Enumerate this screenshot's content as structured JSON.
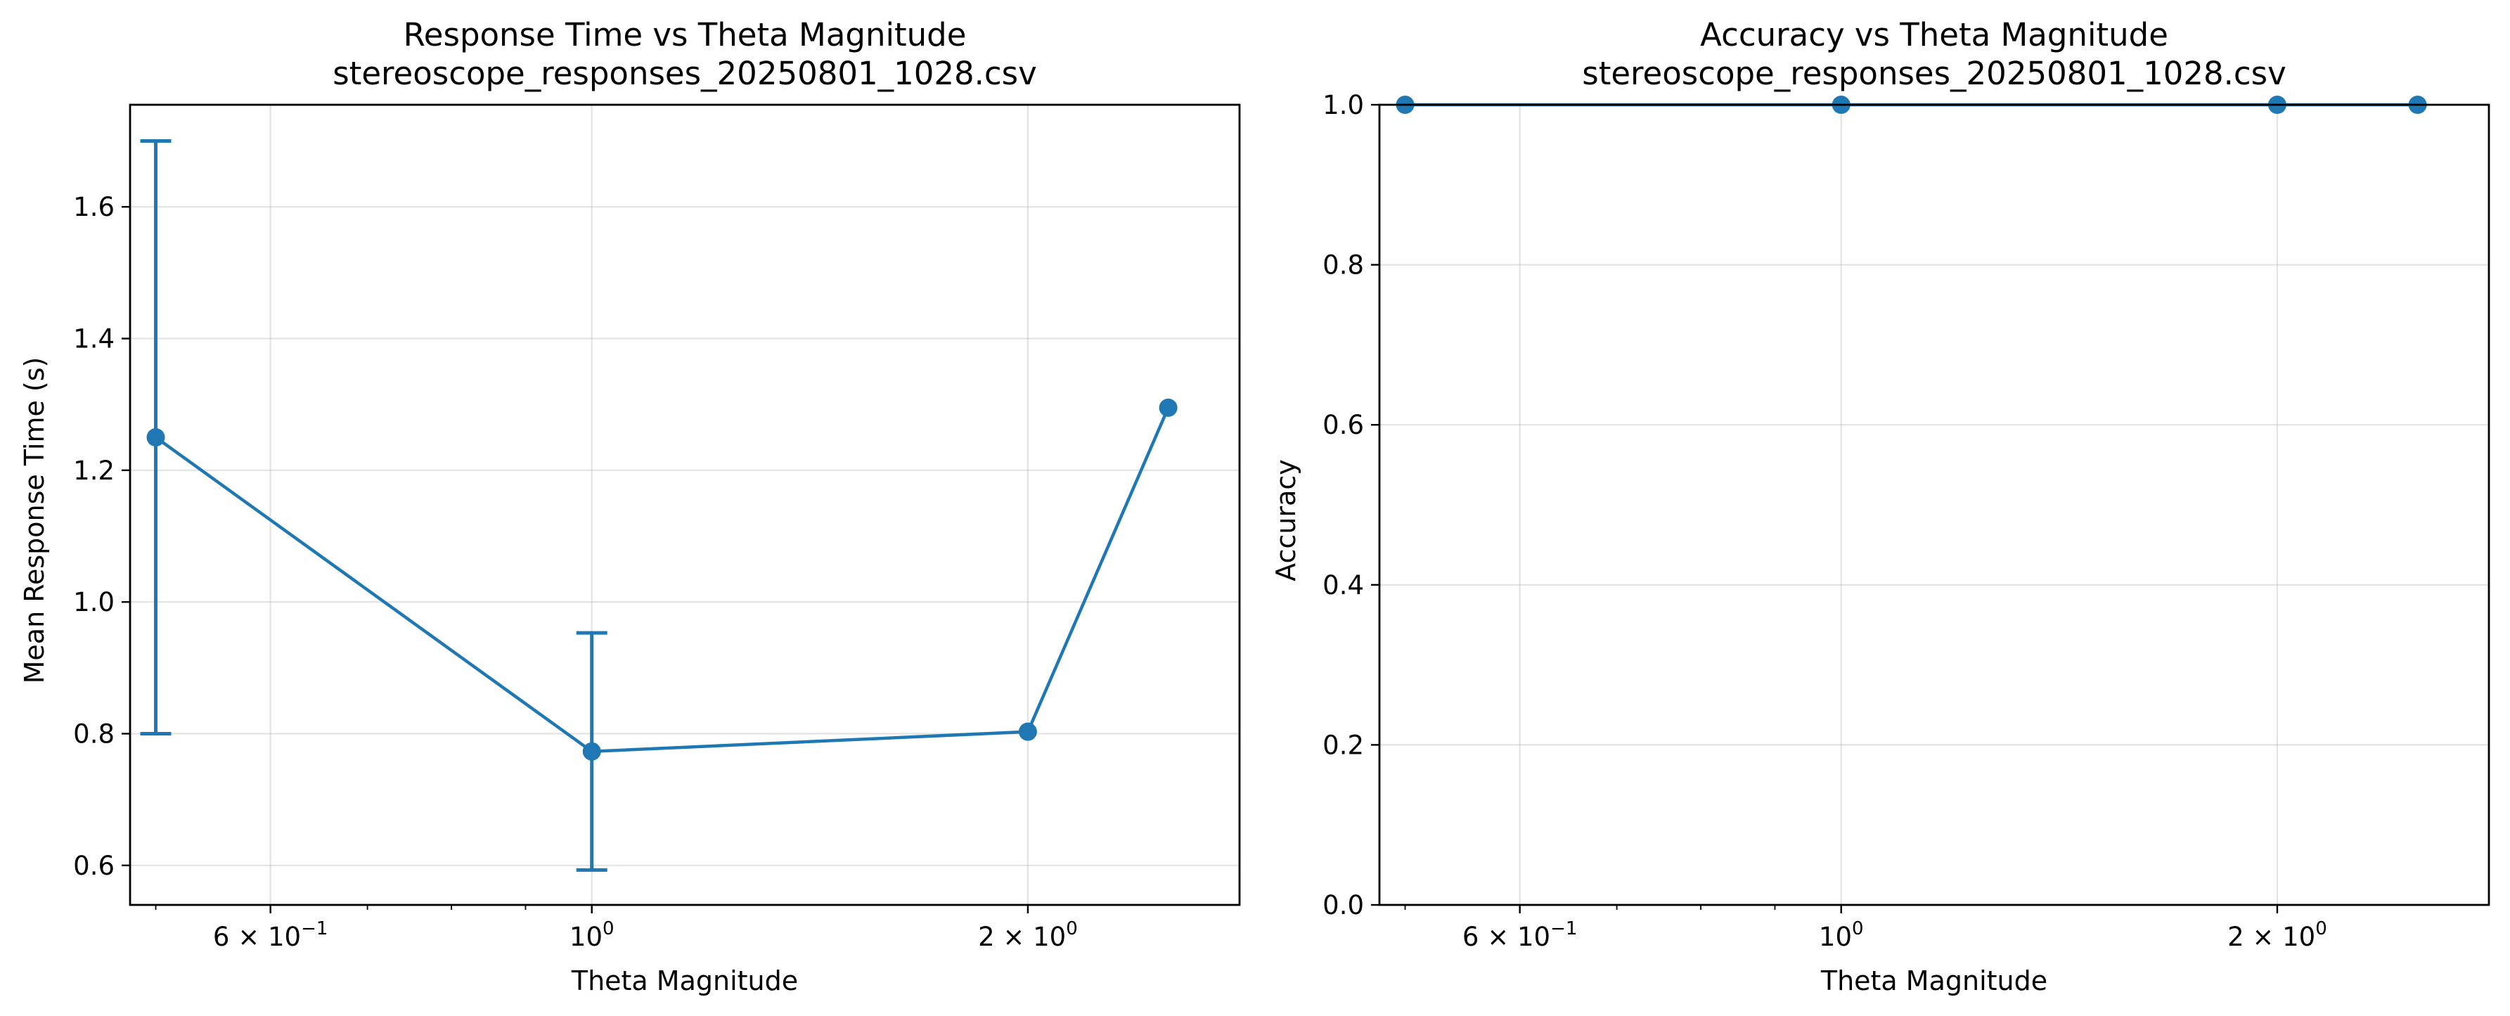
{
  "chart_data": [
    {
      "type": "line",
      "title": "Response Time vs Theta Magnitude",
      "subtitle": "stereoscope_responses_20250801_1028.csv",
      "xlabel": "Theta Magnitude",
      "ylabel": "Mean Response Time (s)",
      "xscale": "log",
      "xlim": [
        0.48,
        2.8
      ],
      "ylim": [
        0.54,
        1.755
      ],
      "grid": true,
      "x_tick_labels": [
        {
          "value": 0.6,
          "mantissa": "6",
          "exponent": "−1"
        },
        {
          "value": 1.0,
          "mantissa": "",
          "exponent": "0"
        },
        {
          "value": 2.0,
          "mantissa": "2",
          "exponent": "0"
        }
      ],
      "x_minor_ticks": [
        0.5,
        0.7,
        0.8,
        0.9,
        3.0
      ],
      "y_ticks": [
        0.6,
        0.8,
        1.0,
        1.2,
        1.4,
        1.6
      ],
      "y_tick_labels": [
        "0.6",
        "0.8",
        "1.0",
        "1.2",
        "1.4",
        "1.6"
      ],
      "series": [
        {
          "color": "#1f77b4",
          "x": [
            0.5,
            1.0,
            2.0,
            2.5
          ],
          "y": [
            1.25,
            0.773,
            0.803,
            1.295
          ],
          "yerr": [
            0.45,
            0.18,
            0,
            0
          ]
        }
      ]
    },
    {
      "type": "scatter",
      "title": "Accuracy vs Theta Magnitude",
      "subtitle": "stereoscope_responses_20250801_1028.csv",
      "xlabel": "Theta Magnitude",
      "ylabel": "Accuracy",
      "xscale": "log",
      "xlim": [
        0.48,
        2.8
      ],
      "ylim": [
        0.0,
        1.0
      ],
      "grid": true,
      "x_tick_labels": [
        {
          "value": 0.6,
          "mantissa": "6",
          "exponent": "−1"
        },
        {
          "value": 1.0,
          "mantissa": "",
          "exponent": "0"
        },
        {
          "value": 2.0,
          "mantissa": "2",
          "exponent": "0"
        }
      ],
      "x_minor_ticks": [
        0.5,
        0.7,
        0.8,
        0.9,
        3.0
      ],
      "y_ticks": [
        0.0,
        0.2,
        0.4,
        0.6,
        0.8,
        1.0
      ],
      "y_tick_labels": [
        "0.0",
        "0.2",
        "0.4",
        "0.6",
        "0.8",
        "1.0"
      ],
      "series": [
        {
          "color": "#1f77b4",
          "x": [
            0.5,
            1.0,
            2.0,
            2.5
          ],
          "y": [
            1.0,
            1.0,
            1.0,
            1.0
          ]
        }
      ]
    }
  ]
}
